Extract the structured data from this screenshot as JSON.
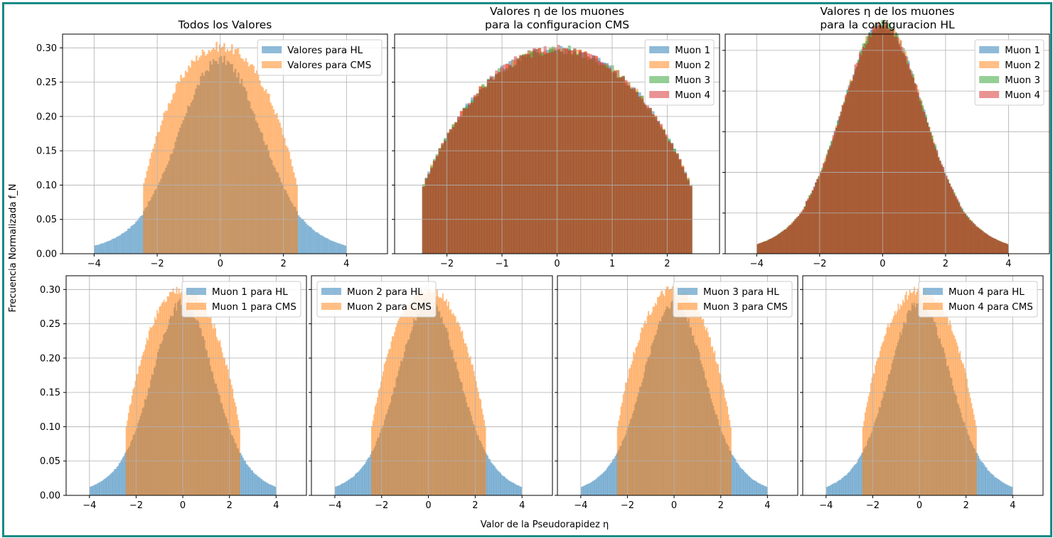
{
  "colors": {
    "blue": "#1f77b4",
    "orange": "#ff7f0e",
    "green": "#2ca02c",
    "red": "#d62728",
    "border": "#1a8a86",
    "grid": "#b0b0b0"
  },
  "figure": {
    "xlabel": "Valor de la Pseudorapidez η",
    "ylabel": "Frecuencia Normalizada f_N"
  },
  "chart_data": [
    {
      "type": "histogram",
      "title": "Todos los Valores",
      "xlim": [
        -5.0,
        5.3
      ],
      "ylim": [
        0,
        0.32
      ],
      "xticks": [
        -4,
        -2,
        0,
        2,
        4
      ],
      "yticks": [
        0.0,
        0.05,
        0.1,
        0.15,
        0.2,
        0.25,
        0.3
      ],
      "ytick_labels": [
        "0.00",
        "0.05",
        "0.10",
        "0.15",
        "0.20",
        "0.25",
        "0.30"
      ],
      "grid": true,
      "legend": "upper right",
      "series": [
        {
          "name": "Valores para HL",
          "color": "#1f77b4",
          "dist": "hl",
          "range": [
            -4.0,
            4.0
          ],
          "peak": 0.263,
          "tail": 0.059
        },
        {
          "name": "Valores para CMS",
          "color": "#ff7f0e",
          "dist": "cms",
          "range": [
            -2.45,
            2.45
          ],
          "peak": 0.302
        }
      ]
    },
    {
      "type": "histogram",
      "title_lines": [
        "Valores η de los muones",
        "para la configuracion CMS"
      ],
      "xlim": [
        -2.95,
        2.95
      ],
      "ylim": [
        0,
        0.32
      ],
      "xticks": [
        -2,
        -1,
        0,
        1,
        2
      ],
      "yticks": [
        0.0,
        0.05,
        0.1,
        0.15,
        0.2,
        0.25,
        0.3
      ],
      "ytick_labels": [],
      "grid": true,
      "legend": "upper right",
      "series": [
        {
          "name": "Muon 1",
          "color": "#1f77b4",
          "dist": "cms",
          "range": [
            -2.45,
            2.45
          ],
          "peak": 0.298
        },
        {
          "name": "Muon 2",
          "color": "#ff7f0e",
          "dist": "cms",
          "range": [
            -2.45,
            2.45
          ],
          "peak": 0.298
        },
        {
          "name": "Muon 3",
          "color": "#2ca02c",
          "dist": "cms",
          "range": [
            -2.45,
            2.45
          ],
          "peak": 0.298
        },
        {
          "name": "Muon 4",
          "color": "#d62728",
          "dist": "cms",
          "range": [
            -2.45,
            2.45
          ],
          "peak": 0.298
        }
      ]
    },
    {
      "type": "histogram",
      "title_lines": [
        "Valores η de los muones",
        "para la configuracion HL"
      ],
      "xlim": [
        -5.0,
        5.3
      ],
      "ylim": [
        0,
        0.27
      ],
      "xticks": [
        -4,
        -2,
        0,
        2,
        4
      ],
      "yticks": [
        0.0,
        0.05,
        0.1,
        0.15,
        0.2,
        0.25
      ],
      "ytick_labels": [],
      "grid": true,
      "legend": "upper right",
      "series": [
        {
          "name": "Muon 1",
          "color": "#1f77b4",
          "dist": "hl",
          "range": [
            -4.0,
            4.0
          ],
          "peak": 0.262,
          "tail": 0.059
        },
        {
          "name": "Muon 2",
          "color": "#ff7f0e",
          "dist": "hl",
          "range": [
            -4.0,
            4.0
          ],
          "peak": 0.262,
          "tail": 0.059
        },
        {
          "name": "Muon 3",
          "color": "#2ca02c",
          "dist": "hl",
          "range": [
            -4.0,
            4.0
          ],
          "peak": 0.262,
          "tail": 0.059
        },
        {
          "name": "Muon 4",
          "color": "#d62728",
          "dist": "hl",
          "range": [
            -4.0,
            4.0
          ],
          "peak": 0.262,
          "tail": 0.059
        }
      ]
    },
    {
      "type": "histogram",
      "xlim": [
        -5.0,
        5.3
      ],
      "ylim": [
        0,
        0.32
      ],
      "xticks": [
        -4,
        -2,
        0,
        2,
        4
      ],
      "yticks": [
        0.0,
        0.05,
        0.1,
        0.15,
        0.2,
        0.25,
        0.3
      ],
      "ytick_labels": [
        "0.00",
        "0.05",
        "0.10",
        "0.15",
        "0.20",
        "0.25",
        "0.30"
      ],
      "grid": true,
      "legend": "upper right",
      "series": [
        {
          "name": "Muon 1 para HL",
          "color": "#1f77b4",
          "dist": "hl",
          "range": [
            -4.0,
            4.0
          ],
          "peak": 0.262,
          "tail": 0.062
        },
        {
          "name": "Muon 1 para CMS",
          "color": "#ff7f0e",
          "dist": "cms",
          "range": [
            -2.45,
            2.45
          ],
          "peak": 0.3
        }
      ]
    },
    {
      "type": "histogram",
      "xlim": [
        -5.0,
        5.3
      ],
      "ylim": [
        0,
        0.32
      ],
      "xticks": [
        -4,
        -2,
        0,
        2,
        4
      ],
      "yticks": [
        0.0,
        0.05,
        0.1,
        0.15,
        0.2,
        0.25,
        0.3
      ],
      "ytick_labels": [],
      "grid": true,
      "legend": "upper left",
      "series": [
        {
          "name": "Muon 2 para HL",
          "color": "#1f77b4",
          "dist": "hl",
          "range": [
            -4.0,
            4.0
          ],
          "peak": 0.262,
          "tail": 0.062
        },
        {
          "name": "Muon 2 para CMS",
          "color": "#ff7f0e",
          "dist": "cms",
          "range": [
            -2.45,
            2.45
          ],
          "peak": 0.3
        }
      ]
    },
    {
      "type": "histogram",
      "xlim": [
        -5.0,
        5.3
      ],
      "ylim": [
        0,
        0.32
      ],
      "xticks": [
        -4,
        -2,
        0,
        2,
        4
      ],
      "yticks": [
        0.0,
        0.05,
        0.1,
        0.15,
        0.2,
        0.25,
        0.3
      ],
      "ytick_labels": [],
      "grid": true,
      "legend": "upper right",
      "series": [
        {
          "name": "Muon 3 para HL",
          "color": "#1f77b4",
          "dist": "hl",
          "range": [
            -4.0,
            4.0
          ],
          "peak": 0.262,
          "tail": 0.062
        },
        {
          "name": "Muon 3 para CMS",
          "color": "#ff7f0e",
          "dist": "cms",
          "range": [
            -2.45,
            2.45
          ],
          "peak": 0.3
        }
      ]
    },
    {
      "type": "histogram",
      "xlim": [
        -5.0,
        5.3
      ],
      "ylim": [
        0,
        0.32
      ],
      "xticks": [
        -4,
        -2,
        0,
        2,
        4
      ],
      "yticks": [
        0.0,
        0.05,
        0.1,
        0.15,
        0.2,
        0.25,
        0.3
      ],
      "ytick_labels": [],
      "grid": true,
      "legend": "upper right",
      "series": [
        {
          "name": "Muon 4 para HL",
          "color": "#1f77b4",
          "dist": "hl",
          "range": [
            -4.0,
            4.0
          ],
          "peak": 0.262,
          "tail": 0.062
        },
        {
          "name": "Muon 4 para CMS",
          "color": "#ff7f0e",
          "dist": "cms",
          "range": [
            -2.45,
            2.45
          ],
          "peak": 0.3
        }
      ]
    }
  ]
}
